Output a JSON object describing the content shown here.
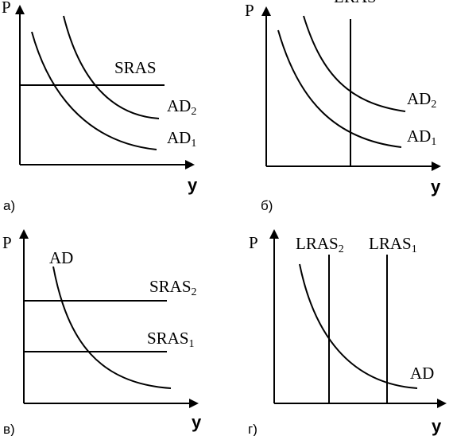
{
  "panels": {
    "a": {
      "id_label": "а)",
      "p_axis": "P",
      "y_axis": "y",
      "curves": [
        {
          "base": "SRAS",
          "sub": ""
        },
        {
          "base": "AD",
          "sub": "2"
        },
        {
          "base": "AD",
          "sub": "1"
        }
      ]
    },
    "b": {
      "id_label": "б)",
      "p_axis": "P",
      "y_axis": "y",
      "top_label": "LRAS",
      "curves": [
        {
          "base": "AD",
          "sub": "2"
        },
        {
          "base": "AD",
          "sub": "1"
        }
      ]
    },
    "c": {
      "id_label": "в)",
      "p_axis": "P",
      "y_axis": "y",
      "curves": [
        {
          "base": "AD",
          "sub": ""
        },
        {
          "base": "SRAS",
          "sub": "2"
        },
        {
          "base": "SRAS",
          "sub": "1"
        }
      ]
    },
    "d": {
      "id_label": "г)",
      "p_axis": "P",
      "y_axis": "y",
      "curves": [
        {
          "base": "LRAS",
          "sub": "2"
        },
        {
          "base": "LRAS",
          "sub": "1"
        },
        {
          "base": "AD",
          "sub": ""
        }
      ]
    }
  }
}
